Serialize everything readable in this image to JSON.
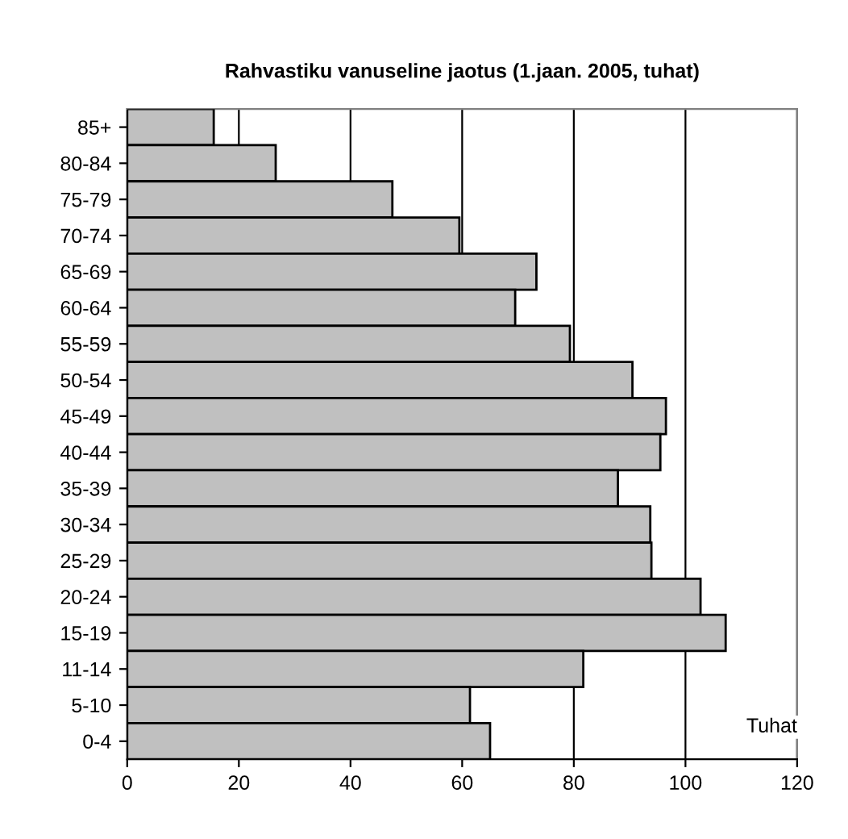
{
  "chart_data": {
    "type": "bar",
    "orientation": "horizontal",
    "title": "Rahvastiku vanuseline jaotus (1.jaan. 2005, tuhat)",
    "xlabel": "Tuhat",
    "categories": [
      "85+",
      "80-84",
      "75-79",
      "70-74",
      "65-69",
      "60-64",
      "55-59",
      "50-54",
      "45-49",
      "40-44",
      "35-39",
      "30-34",
      "25-29",
      "20-24",
      "15-19",
      "11-14",
      "5-10",
      "0-4"
    ],
    "values": [
      15.5,
      26.6,
      47.5,
      59.5,
      73.3,
      69.5,
      79.3,
      90.5,
      96.5,
      95.5,
      87.9,
      93.7,
      93.9,
      102.7,
      107.2,
      81.7,
      61.4,
      65.0
    ],
    "color": "#c0c0c0",
    "xlim": [
      0,
      120
    ],
    "xticks": [
      0,
      20,
      40,
      60,
      80,
      100,
      120
    ],
    "grid": "x"
  }
}
